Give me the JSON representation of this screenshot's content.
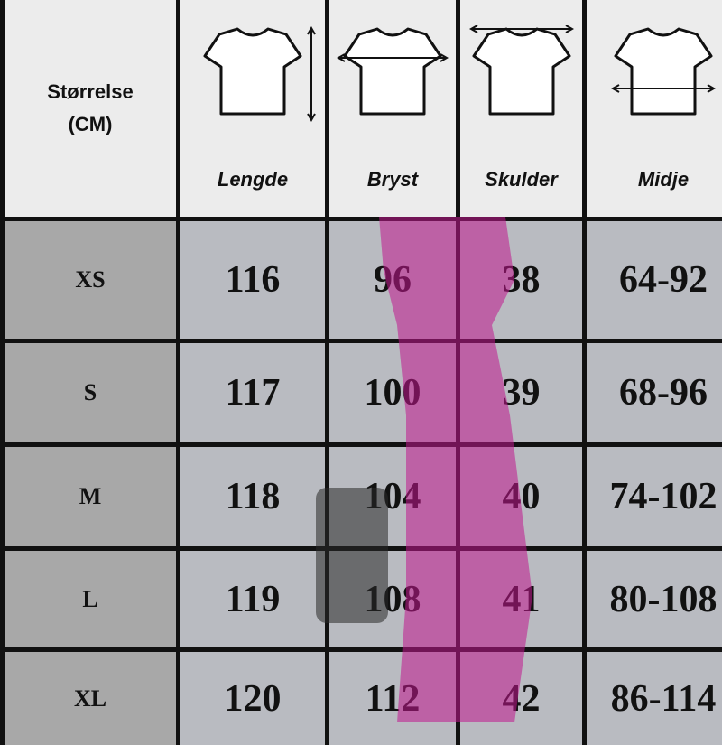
{
  "header": {
    "corner_line1": "Størrelse",
    "corner_line2": "(CM)",
    "columns": [
      {
        "label": "Lengde",
        "icon": "tshirt-length-icon"
      },
      {
        "label": "Bryst",
        "icon": "tshirt-chest-icon"
      },
      {
        "label": "Skulder",
        "icon": "tshirt-shoulder-icon"
      },
      {
        "label": "Midje",
        "icon": "tshirt-waist-icon"
      }
    ]
  },
  "rows": [
    {
      "size": "XS",
      "values": [
        "116",
        "96",
        "38",
        "64-92"
      ]
    },
    {
      "size": "S",
      "values": [
        "117",
        "100",
        "39",
        "68-96"
      ]
    },
    {
      "size": "M",
      "values": [
        "118",
        "104",
        "40",
        "74-102"
      ]
    },
    {
      "size": "L",
      "values": [
        "119",
        "108",
        "41",
        "80-108"
      ]
    },
    {
      "size": "XL",
      "values": [
        "120",
        "112",
        "42",
        "86-114"
      ]
    }
  ],
  "colors": {
    "header_bg": "#ececec",
    "size_col_bg": "#a8a8a8",
    "grid_lines": "#111111",
    "dress": "#c2188f"
  }
}
